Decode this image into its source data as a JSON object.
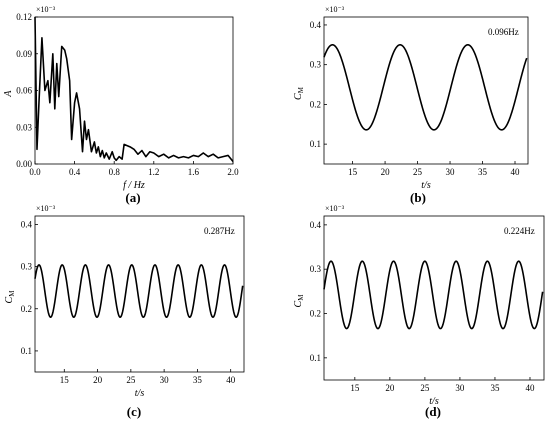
{
  "chart_data": [
    {
      "id": "a",
      "type": "line",
      "panel_label": "(a)",
      "xlabel": "f / Hz",
      "ylabel": "A",
      "y_multiplier": "×10⁻³",
      "xlim": [
        0,
        2.0
      ],
      "ylim": [
        0,
        0.12
      ],
      "x_ticks": [
        "0.0",
        "0.4",
        "0.8",
        "1.2",
        "1.6",
        "2.0"
      ],
      "y_ticks": [
        "0.00",
        "0.03",
        "0.06",
        "0.09",
        "0.12"
      ],
      "x_tick_values": [
        0,
        0.4,
        0.8,
        1.2,
        1.6,
        2.0
      ],
      "y_tick_values": [
        0,
        0.03,
        0.06,
        0.09,
        0.12
      ],
      "x": [
        0.0,
        0.02,
        0.04,
        0.07,
        0.1,
        0.13,
        0.15,
        0.18,
        0.2,
        0.22,
        0.24,
        0.27,
        0.3,
        0.32,
        0.35,
        0.37,
        0.4,
        0.42,
        0.45,
        0.48,
        0.5,
        0.52,
        0.54,
        0.57,
        0.6,
        0.62,
        0.64,
        0.66,
        0.68,
        0.7,
        0.72,
        0.75,
        0.78,
        0.8,
        0.82,
        0.85,
        0.88,
        0.9,
        0.93,
        0.96,
        1.0,
        1.04,
        1.08,
        1.12,
        1.16,
        1.2,
        1.25,
        1.3,
        1.35,
        1.4,
        1.45,
        1.5,
        1.55,
        1.6,
        1.65,
        1.7,
        1.75,
        1.8,
        1.85,
        1.9,
        1.95,
        2.0
      ],
      "y": [
        0.12,
        0.012,
        0.05,
        0.103,
        0.06,
        0.068,
        0.05,
        0.09,
        0.045,
        0.082,
        0.055,
        0.096,
        0.093,
        0.086,
        0.068,
        0.02,
        0.05,
        0.058,
        0.045,
        0.01,
        0.035,
        0.02,
        0.028,
        0.01,
        0.018,
        0.009,
        0.014,
        0.006,
        0.011,
        0.005,
        0.009,
        0.004,
        0.01,
        0.005,
        0.003,
        0.006,
        0.004,
        0.016,
        0.015,
        0.014,
        0.012,
        0.008,
        0.011,
        0.006,
        0.01,
        0.009,
        0.006,
        0.008,
        0.005,
        0.007,
        0.005,
        0.006,
        0.005,
        0.007,
        0.006,
        0.009,
        0.006,
        0.008,
        0.005,
        0.006,
        0.007,
        0.002
      ]
    },
    {
      "id": "b",
      "type": "line",
      "panel_label": "(b)",
      "annotation": "0.096Hz",
      "xlabel": "t/s",
      "ylabel": "C",
      "ylabel_sub": "M",
      "y_multiplier": "×10⁻³",
      "xlim": [
        10.6,
        42
      ],
      "ylim": [
        0.05,
        0.42
      ],
      "x_ticks": [
        "15",
        "20",
        "25",
        "30",
        "35",
        "40"
      ],
      "y_ticks": [
        "0.1",
        "0.2",
        "0.3",
        "0.4"
      ],
      "x_tick_values": [
        15,
        20,
        25,
        30,
        35,
        40
      ],
      "y_tick_values": [
        0.1,
        0.2,
        0.3,
        0.4
      ],
      "sine": {
        "t_start": 10.6,
        "t_end": 41.8,
        "mean": 0.243,
        "amplitude": 0.107,
        "frequency_hz": 0.096,
        "peak_time": 11.9
      }
    },
    {
      "id": "c",
      "type": "line",
      "panel_label": "(c)",
      "annotation": "0.287Hz",
      "xlabel": "t/s",
      "ylabel": "C",
      "ylabel_sub": "M",
      "y_multiplier": "×10⁻³",
      "xlim": [
        10.6,
        42
      ],
      "ylim": [
        0.05,
        0.42
      ],
      "x_ticks": [
        "15",
        "20",
        "25",
        "30",
        "35",
        "40"
      ],
      "y_ticks": [
        "0.1",
        "0.2",
        "0.3",
        "0.4"
      ],
      "x_tick_values": [
        15,
        20,
        25,
        30,
        35,
        40
      ],
      "y_tick_values": [
        0.1,
        0.2,
        0.3,
        0.4
      ],
      "sine": {
        "t_start": 10.6,
        "t_end": 41.8,
        "mean": 0.242,
        "amplitude": 0.062,
        "frequency_hz": 0.287,
        "peak_time": 11.2
      }
    },
    {
      "id": "d",
      "type": "line",
      "panel_label": "(d)",
      "annotation": "0.224Hz",
      "xlabel": "t/s",
      "ylabel": "C",
      "ylabel_sub": "M",
      "y_multiplier": "×10⁻³",
      "xlim": [
        10.6,
        42
      ],
      "ylim": [
        0.05,
        0.42
      ],
      "x_ticks": [
        "15",
        "20",
        "25",
        "30",
        "35",
        "40"
      ],
      "y_ticks": [
        "0.1",
        "0.2",
        "0.3",
        "0.4"
      ],
      "x_tick_values": [
        15,
        20,
        25,
        30,
        35,
        40
      ],
      "y_tick_values": [
        0.1,
        0.2,
        0.3,
        0.4
      ],
      "sine": {
        "t_start": 10.6,
        "t_end": 41.8,
        "mean": 0.242,
        "amplitude": 0.076,
        "frequency_hz": 0.224,
        "peak_time": 11.6
      }
    }
  ]
}
